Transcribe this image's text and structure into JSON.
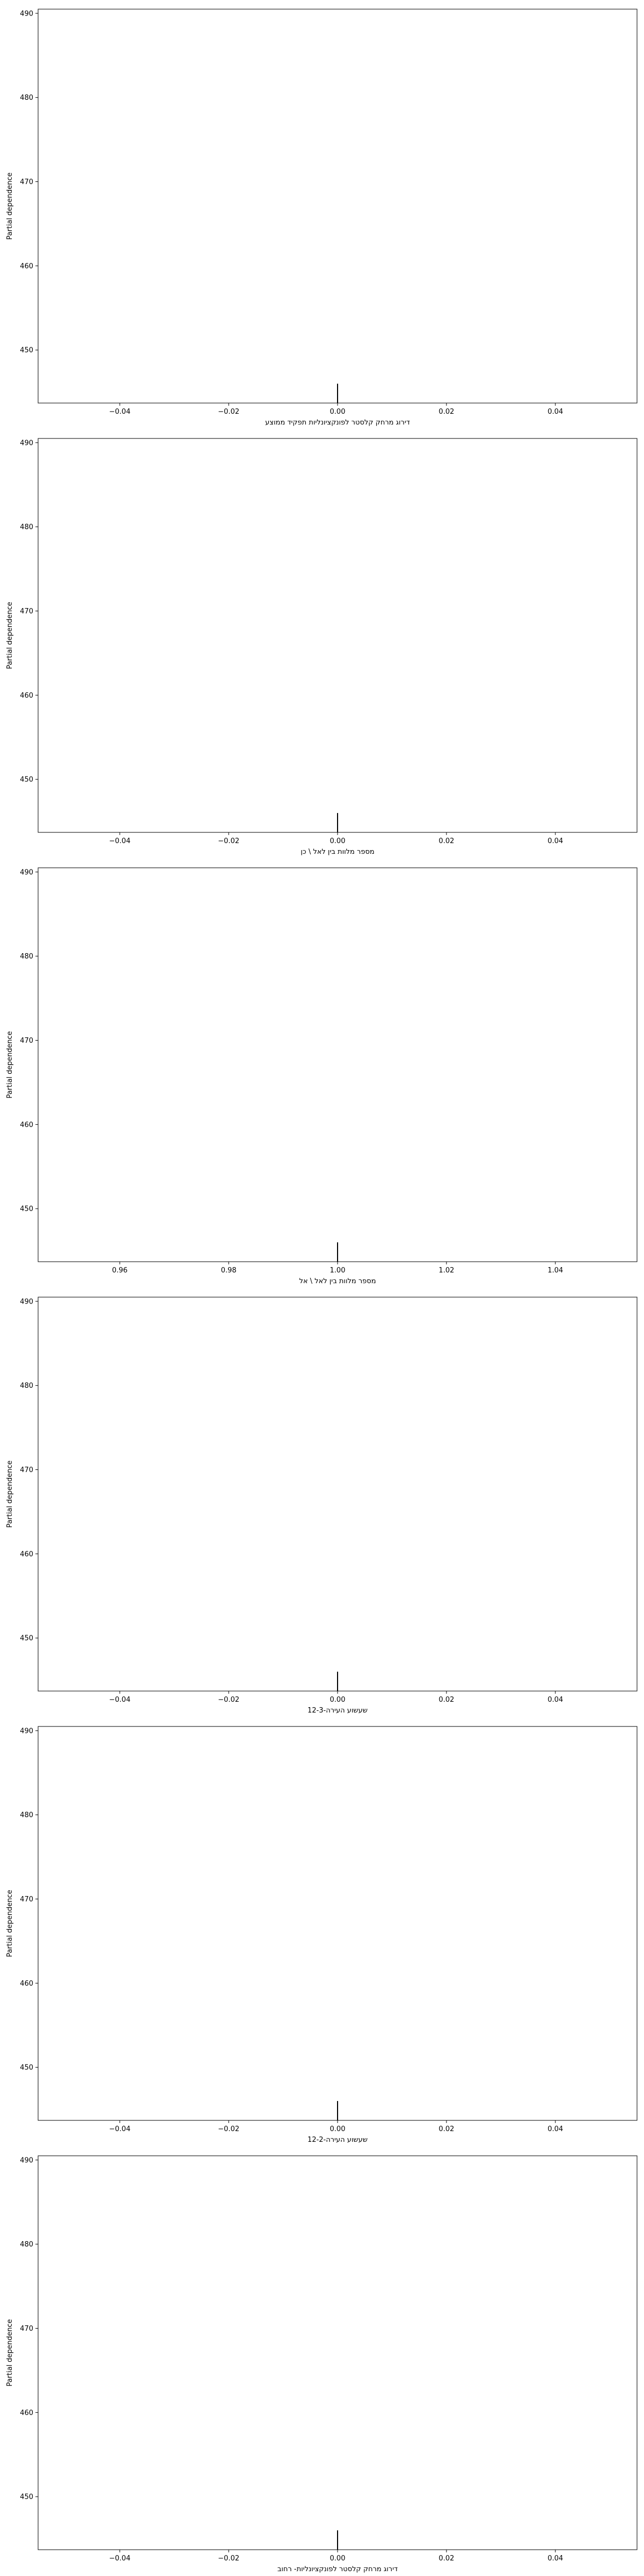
{
  "chart_data": [
    {
      "type": "line",
      "ylabel": "Partial dependence",
      "xlabel": "דירוג מרחק קלסטר לפונקציונליות תפקיד ממוצע",
      "xlim": [
        -0.055,
        0.055
      ],
      "ylim": [
        443.7,
        490.5
      ],
      "xticks": [
        -0.04,
        -0.02,
        0.0,
        0.02,
        0.04
      ],
      "xtick_labels": [
        "−0.04",
        "−0.02",
        "0.00",
        "0.02",
        "0.04"
      ],
      "yticks": [
        450,
        460,
        470,
        480,
        490
      ],
      "ytick_labels": [
        "450",
        "460",
        "470",
        "480",
        "490"
      ],
      "rug_x": [
        0.0
      ],
      "rug_y_range": [
        443.7,
        446.0
      ],
      "grid": false
    },
    {
      "type": "line",
      "ylabel": "Partial dependence",
      "xlabel": "מספר מלוות בין לאל \\ כן",
      "xlim": [
        -0.055,
        0.055
      ],
      "ylim": [
        443.7,
        490.5
      ],
      "xticks": [
        -0.04,
        -0.02,
        0.0,
        0.02,
        0.04
      ],
      "xtick_labels": [
        "−0.04",
        "−0.02",
        "0.00",
        "0.02",
        "0.04"
      ],
      "yticks": [
        450,
        460,
        470,
        480,
        490
      ],
      "ytick_labels": [
        "450",
        "460",
        "470",
        "480",
        "490"
      ],
      "rug_x": [
        0.0
      ],
      "rug_y_range": [
        443.7,
        446.0
      ],
      "grid": false
    },
    {
      "type": "line",
      "ylabel": "Partial dependence",
      "xlabel": "מספר מלוות בין לאל \\ אל",
      "xlim": [
        0.945,
        1.055
      ],
      "ylim": [
        443.7,
        490.5
      ],
      "xticks": [
        0.96,
        0.98,
        1.0,
        1.02,
        1.04
      ],
      "xtick_labels": [
        "0.96",
        "0.98",
        "1.00",
        "1.02",
        "1.04"
      ],
      "yticks": [
        450,
        460,
        470,
        480,
        490
      ],
      "ytick_labels": [
        "450",
        "460",
        "470",
        "480",
        "490"
      ],
      "rug_x": [
        1.0
      ],
      "rug_y_range": [
        443.7,
        446.0
      ],
      "grid": false
    },
    {
      "type": "line",
      "ylabel": "Partial dependence",
      "xlabel": "שעשוע העירה-12-3",
      "xlim": [
        -0.055,
        0.055
      ],
      "ylim": [
        443.7,
        490.5
      ],
      "xticks": [
        -0.04,
        -0.02,
        0.0,
        0.02,
        0.04
      ],
      "xtick_labels": [
        "−0.04",
        "−0.02",
        "0.00",
        "0.02",
        "0.04"
      ],
      "yticks": [
        450,
        460,
        470,
        480,
        490
      ],
      "ytick_labels": [
        "450",
        "460",
        "470",
        "480",
        "490"
      ],
      "rug_x": [
        0.0
      ],
      "rug_y_range": [
        443.7,
        446.0
      ],
      "grid": false
    },
    {
      "type": "line",
      "ylabel": "Partial dependence",
      "xlabel": "שעשוע העירה-12-2",
      "xlim": [
        -0.055,
        0.055
      ],
      "ylim": [
        443.7,
        490.5
      ],
      "xticks": [
        -0.04,
        -0.02,
        0.0,
        0.02,
        0.04
      ],
      "xtick_labels": [
        "−0.04",
        "−0.02",
        "0.00",
        "0.02",
        "0.04"
      ],
      "yticks": [
        450,
        460,
        470,
        480,
        490
      ],
      "ytick_labels": [
        "450",
        "460",
        "470",
        "480",
        "490"
      ],
      "rug_x": [
        0.0
      ],
      "rug_y_range": [
        443.7,
        446.0
      ],
      "grid": false
    },
    {
      "type": "line",
      "ylabel": "Partial dependence",
      "xlabel": "דירוג מרחק קלסטר לפונקציונליות- רחוב",
      "xlim": [
        -0.055,
        0.055
      ],
      "ylim": [
        443.7,
        490.5
      ],
      "xticks": [
        -0.04,
        -0.02,
        0.0,
        0.02,
        0.04
      ],
      "xtick_labels": [
        "−0.04",
        "−0.02",
        "0.00",
        "0.02",
        "0.04"
      ],
      "yticks": [
        450,
        460,
        470,
        480,
        490
      ],
      "ytick_labels": [
        "450",
        "460",
        "470",
        "480",
        "490"
      ],
      "rug_x": [
        0.0
      ],
      "rug_y_range": [
        443.7,
        446.0
      ],
      "grid": false
    }
  ],
  "colors": {
    "axes": "#000000",
    "rug": "#000000",
    "background": "#ffffff"
  }
}
